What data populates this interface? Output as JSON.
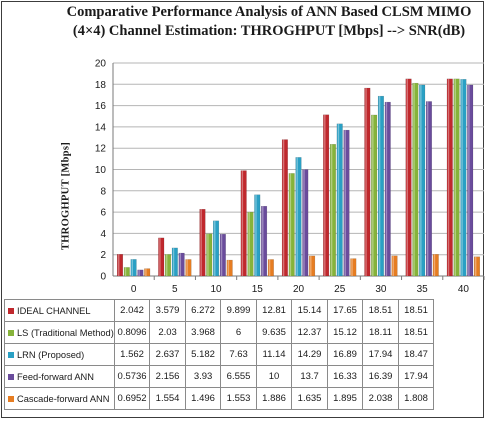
{
  "chart_data": {
    "type": "bar",
    "title_line1": "Comparative Performance Analysis of ANN Based CLSM MIMO",
    "title_line2": "(4×4) Channel Estimation: THROGHPUT  [Mbps]  --> SNR(dB)",
    "ylabel": "THROGHPUT  [Mbps]",
    "xlabel": "",
    "categories": [
      "0",
      "5",
      "10",
      "15",
      "20",
      "25",
      "30",
      "35",
      "40"
    ],
    "ylim": [
      0,
      20
    ],
    "yticks": [
      0,
      2,
      4,
      6,
      8,
      10,
      12,
      14,
      16,
      18,
      20
    ],
    "grid": true,
    "legend": "data-table",
    "series": [
      {
        "name": "IDEAL CHANNEL",
        "color": "#c0282d",
        "values": [
          2.042,
          3.579,
          6.272,
          9.899,
          12.81,
          15.14,
          17.65,
          18.51,
          18.51
        ],
        "labels": [
          "2.042",
          "3.579",
          "6.272",
          "9.899",
          "12.81",
          "15.14",
          "17.65",
          "18.51",
          "18.51"
        ]
      },
      {
        "name": "LS (Traditional Method)",
        "color": "#86b33a",
        "values": [
          0.8096,
          2.03,
          3.968,
          6,
          9.635,
          12.37,
          15.12,
          18.11,
          18.51
        ],
        "labels": [
          "0.8096",
          "2.03",
          "3.968",
          "6",
          "9.635",
          "12.37",
          "15.12",
          "18.11",
          "18.51"
        ]
      },
      {
        "name": "LRN (Proposed)",
        "color": "#2aa0c4",
        "values": [
          1.562,
          2.637,
          5.182,
          7.63,
          11.14,
          14.29,
          16.89,
          17.94,
          18.47
        ],
        "labels": [
          "1.562",
          "2.637",
          "5.182",
          "7.63",
          "11.14",
          "14.29",
          "16.89",
          "17.94",
          "18.47"
        ]
      },
      {
        "name": "Feed-forward ANN",
        "color": "#6a4c9c",
        "values": [
          0.5736,
          2.156,
          3.93,
          6.555,
          10,
          13.7,
          16.33,
          16.39,
          17.94
        ],
        "labels": [
          "0.5736",
          "2.156",
          "3.93",
          "6.555",
          "10",
          "13.7",
          "16.33",
          "16.39",
          "17.94"
        ]
      },
      {
        "name": "Cascade-forward ANN",
        "color": "#e67d22",
        "values": [
          0.6952,
          1.554,
          1.496,
          1.553,
          1.886,
          1.635,
          1.895,
          2.038,
          1.808
        ],
        "labels": [
          "0.6952",
          "1.554",
          "1.496",
          "1.553",
          "1.886",
          "1.635",
          "1.895",
          "2.038",
          "1.808"
        ]
      }
    ]
  }
}
